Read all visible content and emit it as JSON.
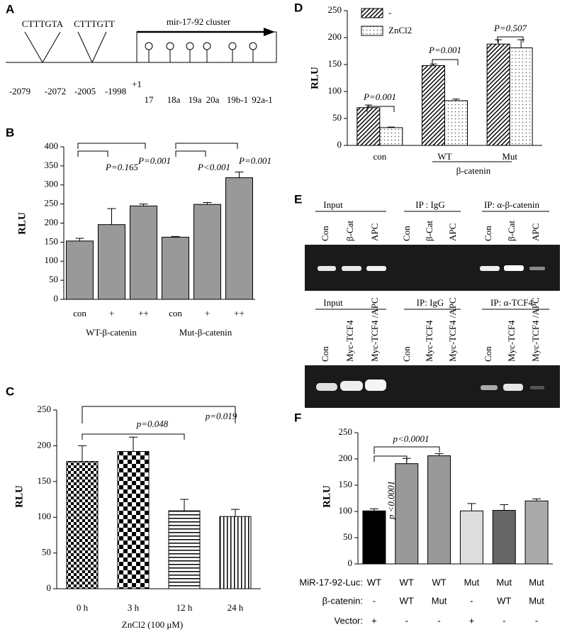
{
  "chart_data": [
    {
      "panel": "B",
      "type": "bar",
      "ylabel": "RLU",
      "categories": [
        "con",
        "+",
        "++",
        "con",
        "+",
        "++"
      ],
      "groups": [
        "WT-β-catenin",
        "Mut-β-catenin"
      ],
      "values": [
        153,
        196,
        245,
        163,
        249,
        319
      ],
      "errors": [
        7,
        42,
        5,
        2,
        5,
        15
      ],
      "color": "#999999",
      "ylim": [
        0,
        400
      ],
      "yticks": [
        0,
        50,
        100,
        150,
        200,
        250,
        300,
        350,
        400
      ],
      "annotations": [
        "P=0.165",
        "P=0.001",
        "P<0.001",
        "P=0.001"
      ]
    },
    {
      "panel": "C",
      "type": "bar",
      "ylabel": "RLU",
      "xlabel": "ZnCl2 (100 μM)",
      "categories": [
        "0 h",
        "3 h",
        "12 h",
        "24 h"
      ],
      "values": [
        178,
        192,
        109,
        101
      ],
      "errors": [
        22,
        20,
        16,
        10
      ],
      "ylim": [
        0,
        250
      ],
      "yticks": [
        0,
        50,
        100,
        150,
        200,
        250
      ],
      "annotations": [
        "p=0.048",
        "p=0.019"
      ]
    },
    {
      "panel": "D",
      "type": "bar",
      "ylabel": "RLU",
      "categories": [
        "con",
        "WT",
        "Mut"
      ],
      "group_label": "β-catenin",
      "series": [
        {
          "name": "-",
          "values": [
            70,
            148,
            188
          ],
          "errors": [
            5,
            3,
            8
          ]
        },
        {
          "name": "ZnCl2",
          "values": [
            33,
            83,
            181
          ],
          "errors": [
            1,
            3,
            15
          ]
        }
      ],
      "ylim": [
        0,
        250
      ],
      "yticks": [
        0,
        50,
        100,
        150,
        200,
        250
      ],
      "annotations": [
        "P=0.001",
        "P=0.001",
        "P=0.507"
      ]
    },
    {
      "panel": "F",
      "type": "bar",
      "ylabel": "RLU",
      "values": [
        101,
        191,
        206,
        101,
        102,
        120
      ],
      "errors": [
        4,
        10,
        4,
        14,
        11,
        4
      ],
      "colors": [
        "#000000",
        "#999999",
        "#999999",
        "#dddddd",
        "#666666",
        "#aaaaaa"
      ],
      "ylim": [
        0,
        250
      ],
      "yticks": [
        0,
        50,
        100,
        150,
        200,
        250
      ],
      "annotations": [
        "p<0.0001",
        "p <0.0001"
      ],
      "table": [
        {
          "label": "MiR-17-92-Luc:",
          "cells": [
            "WT",
            "WT",
            "WT",
            "Mut",
            "Mut",
            "Mut"
          ]
        },
        {
          "label": "β-catenin:",
          "cells": [
            "-",
            "WT",
            "Mut",
            "-",
            "WT",
            "Mut"
          ]
        },
        {
          "label": "Vector:",
          "cells": [
            "+",
            "-",
            "-",
            "+",
            "-",
            "-"
          ]
        }
      ]
    }
  ],
  "panel_a": {
    "label": "A",
    "motifs": [
      "CTTTGTA",
      "CTTTGTT"
    ],
    "cluster": "mir-17-92 cluster",
    "positions": [
      "-2079",
      "-2072",
      "-2005",
      "-1998",
      "+1"
    ],
    "mirnas": [
      "17",
      "18a",
      "19a",
      "20a",
      "19b-1",
      "92a-1"
    ]
  },
  "panel_e": {
    "label": "E",
    "top": {
      "groups": [
        "Input",
        "IP : IgG",
        "IP: α-β-catenin"
      ],
      "lanes": [
        "Con",
        "β-Cat",
        "APC",
        "Con",
        "β-Cat",
        "APC",
        "Con",
        "β-Cat",
        "APC"
      ]
    },
    "bottom": {
      "groups": [
        "Input",
        "IP: IgG",
        "IP: α-TCF4"
      ],
      "lanes": [
        "Con",
        "Myc-TCF4",
        "Myc-TCF4 /APC",
        "Con",
        "Myc-TCF4",
        "Myc-TCF4 /APC",
        "Con",
        "Myc-TCF4",
        "Myc-TCF4 /APC"
      ]
    }
  }
}
